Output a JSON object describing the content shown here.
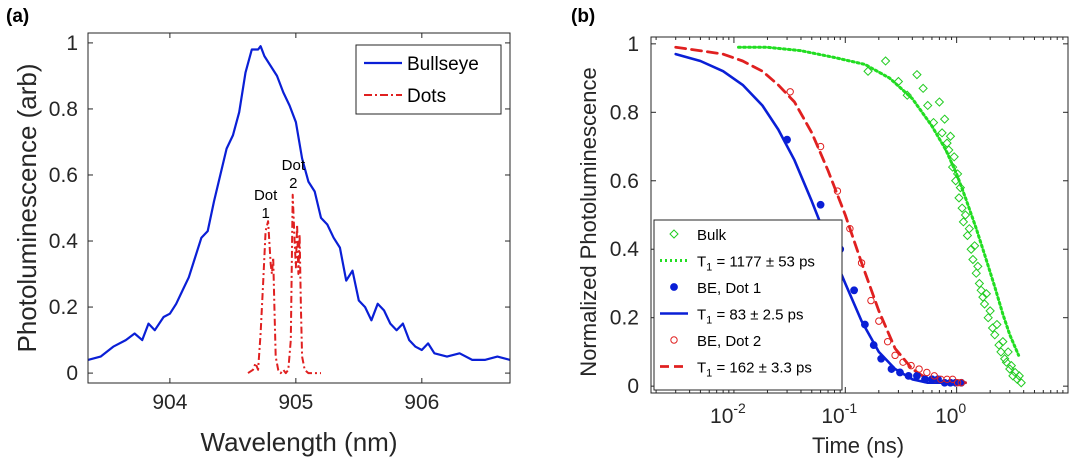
{
  "chart_data": [
    {
      "panel": "(a)",
      "type": "line",
      "xlabel": "Wavelength (nm)",
      "ylabel": "Photoluminescence (arb)",
      "xlim": [
        903.35,
        906.7
      ],
      "ylim": [
        -0.03,
        1.03
      ],
      "xticks": [
        904,
        905,
        906
      ],
      "xtick_labels": [
        "904",
        "905",
        "906"
      ],
      "yticks": [
        0,
        0.2,
        0.4,
        0.6,
        0.8,
        1
      ],
      "ytick_labels": [
        "0",
        "0.2",
        "0.4",
        "0.6",
        "0.8",
        "1"
      ],
      "legend_position": "top-right",
      "annotations": [
        {
          "label": "Dot",
          "sub": "1",
          "x": 904.76,
          "y": 0.47
        },
        {
          "label": "Dot",
          "sub": "2",
          "x": 904.98,
          "y": 0.56
        }
      ],
      "series": [
        {
          "name": "Bullseye",
          "color": "#0a1fd6",
          "style": "solid",
          "x": [
            903.35,
            903.45,
            903.55,
            903.65,
            903.72,
            903.78,
            903.83,
            903.88,
            903.95,
            904.0,
            904.05,
            904.1,
            904.15,
            904.2,
            904.25,
            904.3,
            904.35,
            904.4,
            904.45,
            904.5,
            904.55,
            904.6,
            904.65,
            904.7,
            904.72,
            904.75,
            904.8,
            904.85,
            904.9,
            904.95,
            905.0,
            905.05,
            905.1,
            905.15,
            905.2,
            905.25,
            905.3,
            905.35,
            905.4,
            905.45,
            905.5,
            905.55,
            905.6,
            905.65,
            905.7,
            905.75,
            905.8,
            905.85,
            905.9,
            905.95,
            906.0,
            906.05,
            906.1,
            906.2,
            906.3,
            906.4,
            906.5,
            906.6,
            906.7
          ],
          "values": [
            0.04,
            0.05,
            0.08,
            0.1,
            0.12,
            0.1,
            0.15,
            0.13,
            0.17,
            0.18,
            0.21,
            0.25,
            0.29,
            0.35,
            0.41,
            0.43,
            0.52,
            0.6,
            0.68,
            0.72,
            0.79,
            0.91,
            0.98,
            0.98,
            0.99,
            0.96,
            0.93,
            0.9,
            0.85,
            0.81,
            0.76,
            0.65,
            0.58,
            0.55,
            0.47,
            0.45,
            0.41,
            0.38,
            0.28,
            0.31,
            0.22,
            0.2,
            0.16,
            0.21,
            0.19,
            0.15,
            0.13,
            0.15,
            0.1,
            0.08,
            0.07,
            0.09,
            0.06,
            0.05,
            0.06,
            0.04,
            0.04,
            0.05,
            0.04
          ]
        },
        {
          "name": "Dots",
          "color": "#e02020",
          "style": "dashdot",
          "x": [
            904.62,
            904.66,
            904.68,
            904.7,
            904.72,
            904.74,
            904.76,
            904.78,
            904.8,
            904.81,
            904.82,
            904.83,
            904.84,
            904.86,
            904.88,
            904.9,
            904.92,
            904.94,
            904.96,
            904.975,
            904.99,
            905.0,
            905.01,
            905.02,
            905.03,
            905.04,
            905.05,
            905.07,
            905.1,
            905.15,
            905.2
          ],
          "values": [
            0.0,
            0.01,
            0.03,
            0.01,
            0.12,
            0.27,
            0.43,
            0.46,
            0.33,
            0.3,
            0.35,
            0.2,
            0.05,
            0.01,
            0.0,
            0.01,
            0.0,
            0.01,
            0.1,
            0.54,
            0.4,
            0.32,
            0.45,
            0.3,
            0.42,
            0.2,
            0.05,
            0.01,
            0.0,
            0.0,
            0.0
          ]
        }
      ]
    },
    {
      "panel": "(b)",
      "type": "scatter",
      "xscale": "log",
      "xlabel": "Time (ns)",
      "ylabel": "Normalized Photoluminescence",
      "xlim": [
        0.0018,
        10
      ],
      "ylim": [
        -0.02,
        1.02
      ],
      "xticks": [
        0.01,
        0.1,
        1
      ],
      "xtick_labels": [
        {
          "base": "10",
          "exp": "-2"
        },
        {
          "base": "10",
          "exp": "-1"
        },
        {
          "base": "10",
          "exp": "0"
        }
      ],
      "yticks": [
        0,
        0.2,
        0.4,
        0.6,
        0.8,
        1
      ],
      "ytick_labels": [
        "0",
        "0.2",
        "0.4",
        "0.6",
        "0.8",
        "1"
      ],
      "legend_position": "bottom-left",
      "legend": [
        {
          "label": "Bulk",
          "kind": "marker",
          "marker": "diamond",
          "color": "#22cc22"
        },
        {
          "label_prefix": "T",
          "label_sub": "1",
          "label_suffix": " = 1177 ± 53  ps",
          "kind": "line",
          "style": "dotted",
          "color": "#22dd22"
        },
        {
          "label": "BE, Dot 1",
          "kind": "marker",
          "marker": "filled-circle",
          "color": "#0a1fd6"
        },
        {
          "label_prefix": "T",
          "label_sub": "1",
          "label_suffix": " = 83 ± 2.5 ps",
          "kind": "line",
          "style": "solid",
          "color": "#0a1fd6"
        },
        {
          "label": "BE, Dot 2",
          "kind": "marker",
          "marker": "open-circle",
          "color": "#e02020"
        },
        {
          "label_prefix": "T",
          "label_sub": "1",
          "label_suffix": " = 162 ± 3.3 ps",
          "kind": "line",
          "style": "dashed",
          "color": "#e02020"
        }
      ],
      "series": [
        {
          "name": "Bulk",
          "marker": "diamond",
          "color": "#22cc22",
          "x": [
            0.16,
            0.23,
            0.3,
            0.36,
            0.44,
            0.5,
            0.55,
            0.62,
            0.7,
            0.74,
            0.78,
            0.82,
            0.85,
            0.88,
            0.92,
            0.95,
            0.98,
            1.02,
            1.05,
            1.08,
            1.12,
            1.15,
            1.2,
            1.25,
            1.3,
            1.35,
            1.4,
            1.45,
            1.5,
            1.55,
            1.6,
            1.66,
            1.72,
            1.78,
            1.85,
            1.92,
            2.0,
            2.1,
            2.2,
            2.3,
            2.4,
            2.5,
            2.6,
            2.7,
            2.8,
            2.9,
            3.0,
            3.1,
            3.2,
            3.35,
            3.5,
            3.65,
            3.8
          ],
          "values": [
            0.92,
            0.95,
            0.89,
            0.85,
            0.91,
            0.87,
            0.82,
            0.77,
            0.83,
            0.74,
            0.78,
            0.71,
            0.69,
            0.73,
            0.64,
            0.67,
            0.6,
            0.62,
            0.55,
            0.58,
            0.52,
            0.48,
            0.5,
            0.44,
            0.46,
            0.4,
            0.37,
            0.41,
            0.33,
            0.35,
            0.3,
            0.28,
            0.26,
            0.24,
            0.27,
            0.2,
            0.22,
            0.17,
            0.15,
            0.18,
            0.12,
            0.1,
            0.13,
            0.08,
            0.07,
            0.1,
            0.05,
            0.06,
            0.03,
            0.04,
            0.02,
            0.03,
            0.01
          ]
        },
        {
          "name": "Bulk fit",
          "line_style": "dotted",
          "color": "#22dd22",
          "x": [
            0.011,
            0.02,
            0.04,
            0.08,
            0.15,
            0.25,
            0.4,
            0.6,
            0.8,
            1.0,
            1.2,
            1.5,
            1.8,
            2.2,
            2.6,
            3.0,
            3.6
          ],
          "values": [
            0.99,
            0.99,
            0.98,
            0.96,
            0.94,
            0.9,
            0.84,
            0.76,
            0.69,
            0.62,
            0.55,
            0.46,
            0.38,
            0.29,
            0.21,
            0.15,
            0.09
          ]
        },
        {
          "name": "BE, Dot 1",
          "marker": "filled-circle",
          "color": "#0a1fd6",
          "x": [
            0.03,
            0.06,
            0.09,
            0.12,
            0.15,
            0.18,
            0.21,
            0.26,
            0.31,
            0.37,
            0.44,
            0.52,
            0.6,
            0.68,
            0.78,
            0.88,
            0.98,
            1.1
          ],
          "values": [
            0.72,
            0.53,
            0.4,
            0.28,
            0.18,
            0.12,
            0.08,
            0.05,
            0.04,
            0.03,
            0.03,
            0.02,
            0.02,
            0.02,
            0.01,
            0.01,
            0.01,
            0.01
          ]
        },
        {
          "name": "BE, Dot 1 fit",
          "line_style": "solid",
          "color": "#0a1fd6",
          "x": [
            0.003,
            0.005,
            0.008,
            0.012,
            0.018,
            0.025,
            0.035,
            0.05,
            0.07,
            0.1,
            0.14,
            0.2,
            0.28,
            0.4,
            0.55,
            0.75,
            1.0,
            1.2
          ],
          "values": [
            0.97,
            0.95,
            0.92,
            0.88,
            0.82,
            0.75,
            0.66,
            0.54,
            0.42,
            0.3,
            0.19,
            0.1,
            0.05,
            0.02,
            0.01,
            0.01,
            0.01,
            0.01
          ]
        },
        {
          "name": "BE, Dot 2",
          "marker": "open-circle",
          "color": "#e02020",
          "x": [
            0.032,
            0.06,
            0.085,
            0.11,
            0.14,
            0.17,
            0.2,
            0.24,
            0.28,
            0.33,
            0.39,
            0.46,
            0.54,
            0.63,
            0.72,
            0.82,
            0.92,
            1.02,
            1.1
          ],
          "values": [
            0.86,
            0.7,
            0.57,
            0.46,
            0.36,
            0.25,
            0.19,
            0.13,
            0.09,
            0.07,
            0.06,
            0.05,
            0.04,
            0.03,
            0.02,
            0.02,
            0.02,
            0.01,
            0.01
          ]
        },
        {
          "name": "BE, Dot 2 fit",
          "line_style": "dashed",
          "color": "#e02020",
          "x": [
            0.003,
            0.005,
            0.008,
            0.012,
            0.018,
            0.025,
            0.035,
            0.05,
            0.07,
            0.1,
            0.14,
            0.2,
            0.28,
            0.4,
            0.55,
            0.75,
            1.0,
            1.2
          ],
          "values": [
            0.99,
            0.98,
            0.97,
            0.95,
            0.92,
            0.88,
            0.83,
            0.74,
            0.63,
            0.5,
            0.36,
            0.22,
            0.11,
            0.05,
            0.02,
            0.01,
            0.01,
            0.01
          ]
        }
      ]
    }
  ]
}
